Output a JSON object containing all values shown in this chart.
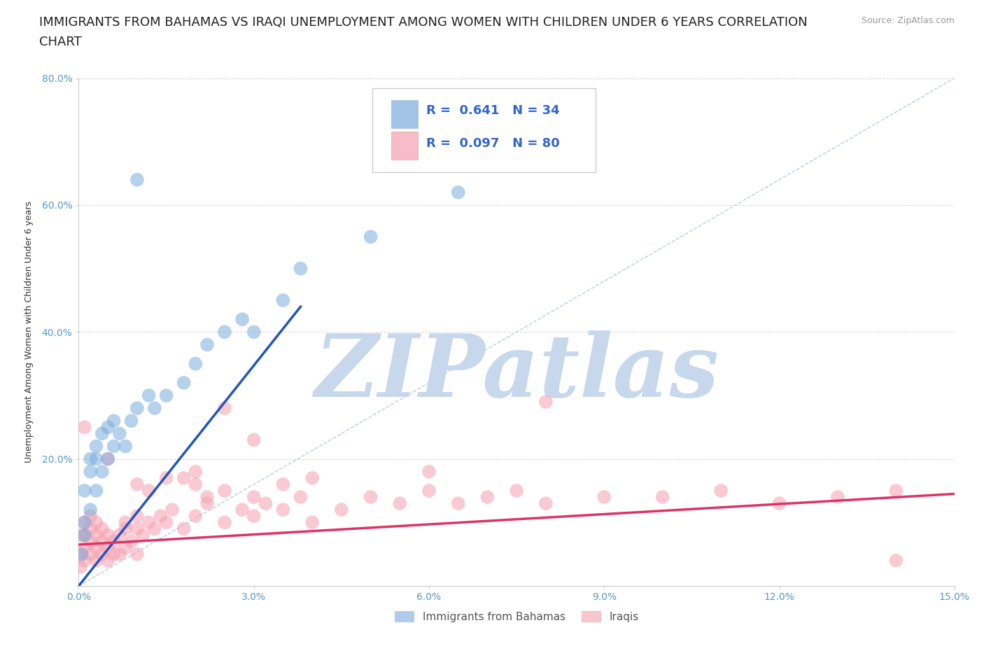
{
  "title_line1": "IMMIGRANTS FROM BAHAMAS VS IRAQI UNEMPLOYMENT AMONG WOMEN WITH CHILDREN UNDER 6 YEARS CORRELATION",
  "title_line2": "CHART",
  "source_text": "Source: ZipAtlas.com",
  "ylabel": "Unemployment Among Women with Children Under 6 years",
  "xlim": [
    0.0,
    0.15
  ],
  "ylim": [
    0.0,
    0.8
  ],
  "xticks": [
    0.0,
    0.03,
    0.06,
    0.09,
    0.12,
    0.15
  ],
  "xticklabels": [
    "0.0%",
    "3.0%",
    "6.0%",
    "9.0%",
    "12.0%",
    "15.0%"
  ],
  "yticks": [
    0.0,
    0.2,
    0.4,
    0.6,
    0.8
  ],
  "yticklabels": [
    "",
    "20.0%",
    "40.0%",
    "60.0%",
    "80.0%"
  ],
  "background_color": "#ffffff",
  "grid_color": "#cccccc",
  "watermark": "ZIPatlas",
  "watermark_color": "#c8d8ec",
  "legend_R1": "R =  0.641",
  "legend_N1": "N = 34",
  "legend_R2": "R =  0.097",
  "legend_N2": "N = 80",
  "legend_label1": "Immigrants from Bahamas",
  "legend_label2": "Iraqis",
  "scatter_blue_color": "#7aacdc",
  "scatter_pink_color": "#f5a0b0",
  "trendline_blue_color": "#2255bb",
  "trendline_pink_color": "#dd3366",
  "diagonal_color": "#aac0dd",
  "title_fontsize": 13,
  "axis_label_fontsize": 9,
  "tick_fontsize": 10,
  "tick_color": "#5599cc",
  "bahamas_x": [
    0.0005,
    0.001,
    0.001,
    0.001,
    0.002,
    0.002,
    0.002,
    0.003,
    0.003,
    0.003,
    0.004,
    0.004,
    0.005,
    0.005,
    0.006,
    0.006,
    0.007,
    0.008,
    0.009,
    0.01,
    0.012,
    0.013,
    0.015,
    0.018,
    0.02,
    0.022,
    0.025,
    0.028,
    0.03,
    0.035,
    0.038,
    0.05,
    0.065,
    0.01
  ],
  "bahamas_y": [
    0.05,
    0.08,
    0.1,
    0.15,
    0.12,
    0.18,
    0.2,
    0.15,
    0.2,
    0.22,
    0.18,
    0.24,
    0.2,
    0.25,
    0.22,
    0.26,
    0.24,
    0.22,
    0.26,
    0.28,
    0.3,
    0.28,
    0.3,
    0.32,
    0.35,
    0.38,
    0.4,
    0.42,
    0.4,
    0.45,
    0.5,
    0.55,
    0.62,
    0.64
  ],
  "iraqi_x": [
    0.0003,
    0.0005,
    0.0005,
    0.001,
    0.001,
    0.001,
    0.001,
    0.002,
    0.002,
    0.002,
    0.002,
    0.003,
    0.003,
    0.003,
    0.003,
    0.004,
    0.004,
    0.004,
    0.005,
    0.005,
    0.005,
    0.006,
    0.006,
    0.007,
    0.007,
    0.008,
    0.008,
    0.009,
    0.01,
    0.01,
    0.011,
    0.012,
    0.013,
    0.014,
    0.015,
    0.016,
    0.018,
    0.02,
    0.022,
    0.025,
    0.028,
    0.03,
    0.032,
    0.035,
    0.038,
    0.04,
    0.045,
    0.05,
    0.055,
    0.06,
    0.065,
    0.07,
    0.075,
    0.08,
    0.09,
    0.1,
    0.11,
    0.12,
    0.13,
    0.14,
    0.06,
    0.08,
    0.04,
    0.035,
    0.03,
    0.025,
    0.02,
    0.015,
    0.012,
    0.01,
    0.025,
    0.03,
    0.018,
    0.02,
    0.022,
    0.008,
    0.01,
    0.005,
    0.14,
    0.001
  ],
  "iraqi_y": [
    0.03,
    0.05,
    0.08,
    0.04,
    0.06,
    0.08,
    0.1,
    0.05,
    0.07,
    0.09,
    0.11,
    0.04,
    0.06,
    0.08,
    0.1,
    0.05,
    0.07,
    0.09,
    0.04,
    0.06,
    0.08,
    0.05,
    0.07,
    0.05,
    0.08,
    0.06,
    0.09,
    0.07,
    0.05,
    0.09,
    0.08,
    0.1,
    0.09,
    0.11,
    0.1,
    0.12,
    0.09,
    0.11,
    0.13,
    0.1,
    0.12,
    0.11,
    0.13,
    0.12,
    0.14,
    0.1,
    0.12,
    0.14,
    0.13,
    0.15,
    0.13,
    0.14,
    0.15,
    0.13,
    0.14,
    0.14,
    0.15,
    0.13,
    0.14,
    0.15,
    0.18,
    0.29,
    0.17,
    0.16,
    0.14,
    0.15,
    0.18,
    0.17,
    0.15,
    0.16,
    0.28,
    0.23,
    0.17,
    0.16,
    0.14,
    0.1,
    0.11,
    0.2,
    0.04,
    0.25
  ],
  "blue_trend_x0": 0.0,
  "blue_trend_y0": 0.0,
  "blue_trend_x1": 0.038,
  "blue_trend_y1": 0.44,
  "pink_trend_x0": 0.0,
  "pink_trend_y0": 0.065,
  "pink_trend_x1": 0.15,
  "pink_trend_y1": 0.145
}
